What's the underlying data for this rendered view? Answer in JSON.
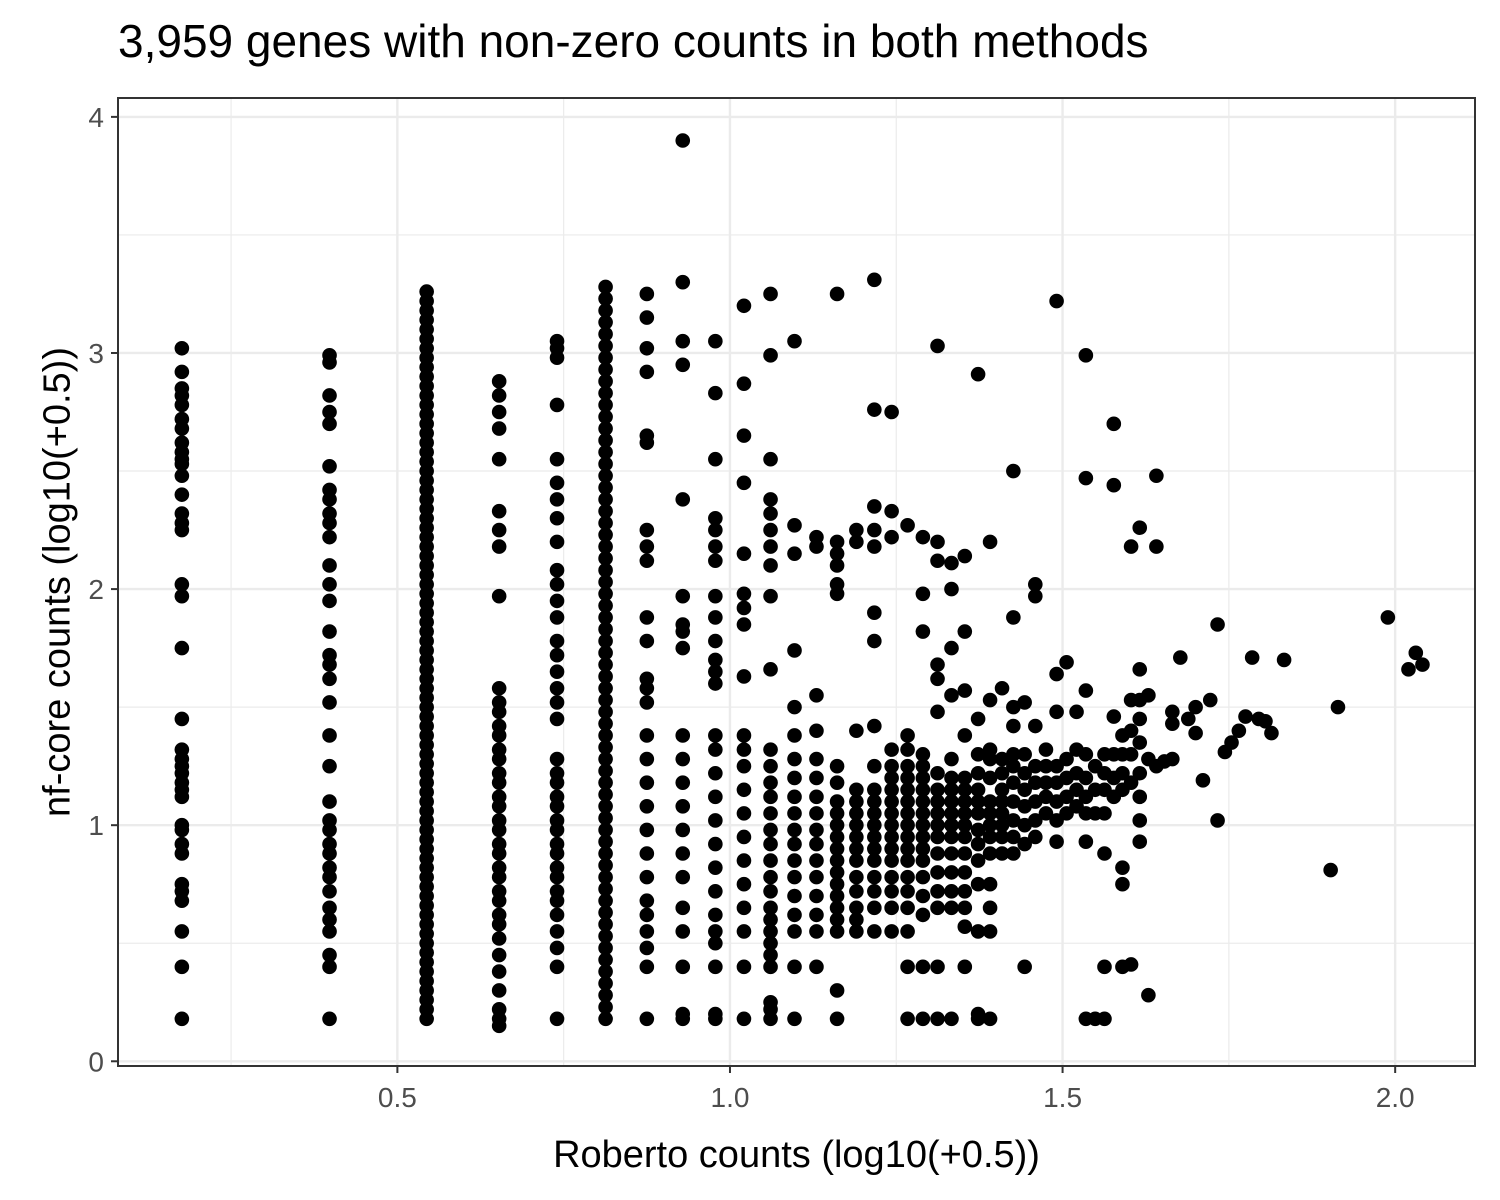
{
  "chart_data": {
    "type": "scatter",
    "title": "3,959 genes with non-zero counts in both methods",
    "xlabel": "Roberto counts (log10(+0.5))",
    "ylabel": "nf-core counts (log10(+0.5))",
    "xlim": [
      0.08,
      2.12
    ],
    "ylim": [
      -0.02,
      4.08
    ],
    "x_ticks": [
      0.5,
      1.0,
      1.5,
      2.0
    ],
    "x_tick_labels": [
      "0.5",
      "1.0",
      "1.5",
      "2.0"
    ],
    "y_ticks": [
      0,
      1,
      2,
      3,
      4
    ],
    "y_tick_labels": [
      "0",
      "1",
      "2",
      "3",
      "4"
    ],
    "grid": true,
    "legend": "none",
    "point_color": "#000000",
    "columns": [
      {
        "x": 0.176,
        "y": [
          0.18,
          0.4,
          0.55,
          0.68,
          0.72,
          0.75,
          0.88,
          0.92,
          0.98,
          1.0,
          1.12,
          1.15,
          1.18,
          1.22,
          1.25,
          1.28,
          1.32,
          1.45,
          1.75,
          1.97,
          2.02,
          2.25,
          2.28,
          2.32,
          2.4,
          2.48,
          2.53,
          2.55,
          2.58,
          2.62,
          2.68,
          2.72,
          2.78,
          2.82,
          2.85,
          2.92,
          3.02
        ]
      },
      {
        "x": 0.398,
        "y": [
          0.18,
          0.4,
          0.45,
          0.55,
          0.6,
          0.65,
          0.72,
          0.78,
          0.82,
          0.88,
          0.92,
          0.98,
          1.02,
          1.1,
          1.25,
          1.38,
          1.52,
          1.62,
          1.68,
          1.72,
          1.82,
          1.95,
          2.02,
          2.1,
          2.22,
          2.28,
          2.32,
          2.38,
          2.42,
          2.52,
          2.7,
          2.75,
          2.82,
          2.96,
          2.99
        ]
      },
      {
        "x": 0.544,
        "y_range": [
          0.18,
          3.28
        ],
        "step": 0.04
      },
      {
        "x": 0.653,
        "y": [
          0.15,
          0.18,
          0.22,
          0.3,
          0.38,
          0.45,
          0.52,
          0.58,
          0.62,
          0.68,
          0.72,
          0.78,
          0.82,
          0.88,
          0.92,
          0.98,
          1.02,
          1.08,
          1.12,
          1.18,
          1.22,
          1.28,
          1.32,
          1.38,
          1.42,
          1.48,
          1.52,
          1.58,
          1.97,
          2.18,
          2.25,
          2.33,
          2.55,
          2.68,
          2.75,
          2.82,
          2.88
        ]
      },
      {
        "x": 0.74,
        "y": [
          0.18,
          0.4,
          0.48,
          0.55,
          0.62,
          0.68,
          0.72,
          0.78,
          0.82,
          0.88,
          0.92,
          0.98,
          1.02,
          1.08,
          1.12,
          1.18,
          1.22,
          1.28,
          1.45,
          1.52,
          1.58,
          1.65,
          1.72,
          1.78,
          1.88,
          1.95,
          2.02,
          2.08,
          2.2,
          2.3,
          2.38,
          2.45,
          2.55,
          2.78,
          2.98,
          3.02,
          3.05
        ]
      },
      {
        "x": 0.813,
        "y_range": [
          0.18,
          3.32
        ],
        "step": 0.05
      },
      {
        "x": 0.875,
        "y": [
          0.18,
          0.4,
          0.48,
          0.55,
          0.62,
          0.68,
          0.78,
          0.88,
          0.98,
          1.08,
          1.18,
          1.28,
          1.38,
          1.52,
          1.58,
          1.62,
          1.78,
          1.88,
          2.12,
          2.18,
          2.25,
          2.62,
          2.65,
          2.92,
          3.02,
          3.15,
          3.25
        ]
      },
      {
        "x": 0.929,
        "y": [
          0.18,
          0.2,
          0.4,
          0.55,
          0.65,
          0.78,
          0.88,
          0.98,
          1.08,
          1.18,
          1.28,
          1.38,
          1.75,
          1.82,
          1.85,
          1.97,
          2.38,
          2.95,
          3.05,
          3.3,
          3.9
        ]
      },
      {
        "x": 0.978,
        "y": [
          0.18,
          0.2,
          0.4,
          0.5,
          0.55,
          0.62,
          0.72,
          0.82,
          0.92,
          1.02,
          1.12,
          1.22,
          1.32,
          1.38,
          1.6,
          1.65,
          1.7,
          1.78,
          1.88,
          1.97,
          2.12,
          2.18,
          2.25,
          2.3,
          2.55,
          2.83,
          3.05
        ]
      },
      {
        "x": 1.021,
        "y": [
          0.18,
          0.4,
          0.55,
          0.65,
          0.75,
          0.85,
          0.95,
          1.05,
          1.15,
          1.25,
          1.32,
          1.38,
          1.63,
          1.85,
          1.92,
          1.98,
          2.15,
          2.45,
          2.65,
          2.87,
          3.2
        ]
      },
      {
        "x": 1.061,
        "y": [
          0.18,
          0.22,
          0.25,
          0.4,
          0.45,
          0.5,
          0.55,
          0.6,
          0.65,
          0.72,
          0.78,
          0.85,
          0.92,
          0.98,
          1.05,
          1.12,
          1.18,
          1.25,
          1.32,
          1.66,
          1.97,
          2.1,
          2.18,
          2.25,
          2.32,
          2.38,
          2.55,
          2.99,
          3.25
        ]
      },
      {
        "x": 1.097,
        "y": [
          0.18,
          0.4,
          0.55,
          0.62,
          0.7,
          0.78,
          0.85,
          0.92,
          0.98,
          1.05,
          1.12,
          1.2,
          1.28,
          1.38,
          1.5,
          1.74,
          2.15,
          2.27,
          3.05
        ]
      },
      {
        "x": 1.13,
        "y": [
          0.4,
          0.55,
          0.62,
          0.7,
          0.78,
          0.85,
          0.92,
          0.98,
          1.05,
          1.12,
          1.2,
          1.28,
          1.4,
          1.55,
          2.18,
          2.22
        ]
      },
      {
        "x": 1.161,
        "y": [
          0.18,
          0.3,
          0.55,
          0.6,
          0.65,
          0.7,
          0.75,
          0.8,
          0.85,
          0.9,
          0.95,
          1.0,
          1.05,
          1.1,
          1.18,
          1.25,
          1.98,
          2.02,
          2.1,
          2.15,
          2.2,
          3.25
        ]
      },
      {
        "x": 1.19,
        "y": [
          0.55,
          0.6,
          0.65,
          0.72,
          0.78,
          0.85,
          0.9,
          0.95,
          1.0,
          1.05,
          1.1,
          1.15,
          1.4,
          2.2,
          2.25
        ]
      },
      {
        "x": 1.217,
        "y": [
          0.55,
          0.65,
          0.72,
          0.78,
          0.85,
          0.9,
          0.95,
          1.0,
          1.05,
          1.1,
          1.15,
          1.25,
          1.42,
          1.78,
          1.9,
          2.18,
          2.25,
          2.35,
          2.76,
          3.31
        ]
      },
      {
        "x": 1.243,
        "y": [
          0.55,
          0.65,
          0.72,
          0.78,
          0.85,
          0.9,
          0.95,
          1.0,
          1.05,
          1.1,
          1.15,
          1.2,
          1.25,
          1.32,
          2.22,
          2.33,
          2.75
        ]
      },
      {
        "x": 1.267,
        "y": [
          0.18,
          0.4,
          0.55,
          0.65,
          0.72,
          0.78,
          0.85,
          0.9,
          0.95,
          1.0,
          1.05,
          1.1,
          1.15,
          1.2,
          1.25,
          1.32,
          1.38,
          2.27
        ]
      },
      {
        "x": 1.29,
        "y": [
          0.18,
          0.4,
          0.62,
          0.7,
          0.78,
          0.85,
          0.9,
          0.95,
          1.0,
          1.05,
          1.1,
          1.15,
          1.2,
          1.25,
          1.3,
          1.82,
          1.98,
          2.22
        ]
      },
      {
        "x": 1.312,
        "y": [
          0.18,
          0.4,
          0.65,
          0.72,
          0.8,
          0.88,
          0.95,
          1.0,
          1.05,
          1.1,
          1.15,
          1.22,
          1.48,
          1.62,
          1.68,
          2.12,
          2.2,
          3.03
        ]
      },
      {
        "x": 1.333,
        "y": [
          0.18,
          0.65,
          0.72,
          0.8,
          0.88,
          0.95,
          1.0,
          1.05,
          1.1,
          1.15,
          1.2,
          1.28,
          1.55,
          1.75,
          2.0,
          2.11
        ]
      },
      {
        "x": 1.353,
        "y": [
          0.4,
          0.57,
          0.65,
          0.72,
          0.8,
          0.88,
          0.95,
          1.0,
          1.05,
          1.1,
          1.15,
          1.2,
          1.38,
          1.57,
          1.82,
          2.14
        ]
      },
      {
        "x": 1.373,
        "y": [
          0.18,
          0.2,
          0.55,
          0.75,
          0.85,
          0.92,
          0.98,
          1.05,
          1.1,
          1.15,
          1.22,
          1.3,
          1.45,
          2.91
        ]
      },
      {
        "x": 1.391,
        "y": [
          0.18,
          0.55,
          0.65,
          0.75,
          0.88,
          0.95,
          1.0,
          1.05,
          1.1,
          1.2,
          1.28,
          1.32,
          1.53,
          2.2
        ]
      },
      {
        "x": 1.409,
        "y": [
          0.88,
          0.95,
          1.0,
          1.05,
          1.1,
          1.15,
          1.22,
          1.28,
          1.58
        ]
      },
      {
        "x": 1.426,
        "y": [
          0.88,
          0.95,
          1.02,
          1.1,
          1.18,
          1.25,
          1.3,
          1.42,
          1.5,
          1.88,
          2.5
        ]
      },
      {
        "x": 1.443,
        "y": [
          0.4,
          0.92,
          1.0,
          1.08,
          1.15,
          1.22,
          1.3,
          1.52
        ]
      },
      {
        "x": 1.459,
        "y": [
          0.95,
          1.02,
          1.1,
          1.18,
          1.25,
          1.42,
          1.97,
          2.02
        ]
      },
      {
        "x": 1.475,
        "y": [
          1.05,
          1.12,
          1.18,
          1.25,
          1.32
        ]
      },
      {
        "x": 1.491,
        "y": [
          0.93,
          1.02,
          1.1,
          1.18,
          1.25,
          1.48,
          1.64,
          3.22
        ]
      },
      {
        "x": 1.506,
        "y": [
          1.05,
          1.12,
          1.2,
          1.28,
          1.69
        ]
      },
      {
        "x": 1.521,
        "y": [
          1.08,
          1.15,
          1.22,
          1.32,
          1.48
        ]
      },
      {
        "x": 1.535,
        "y": [
          0.18,
          0.93,
          1.05,
          1.12,
          1.2,
          1.3,
          1.57,
          2.47,
          2.99
        ]
      },
      {
        "x": 1.549,
        "y": [
          0.18,
          1.05,
          1.15,
          1.25
        ]
      },
      {
        "x": 1.563,
        "y": [
          0.18,
          0.4,
          0.88,
          1.05,
          1.15,
          1.22,
          1.3
        ]
      },
      {
        "x": 1.577,
        "y": [
          1.12,
          1.2,
          1.3,
          1.46,
          2.44,
          2.7
        ]
      },
      {
        "x": 1.59,
        "y": [
          0.4,
          0.75,
          0.82,
          1.15,
          1.22,
          1.3,
          1.38
        ]
      },
      {
        "x": 1.603,
        "y": [
          0.41,
          1.18,
          1.3,
          1.4,
          1.53,
          2.18
        ]
      },
      {
        "x": 1.616,
        "y": [
          0.93,
          1.02,
          1.12,
          1.22,
          1.35,
          1.45,
          1.53,
          1.66,
          2.26
        ]
      },
      {
        "x": 1.629,
        "y": [
          0.28,
          1.28,
          1.55
        ]
      },
      {
        "x": 1.641,
        "y": [
          1.25,
          2.18,
          2.48
        ]
      },
      {
        "x": 1.653,
        "y": [
          1.27
        ]
      },
      {
        "x": 1.665,
        "y": [
          1.28,
          1.43,
          1.48
        ]
      },
      {
        "x": 1.677,
        "y": [
          1.71
        ]
      },
      {
        "x": 1.689,
        "y": [
          1.45
        ]
      },
      {
        "x": 1.7,
        "y": [
          1.39,
          1.5
        ]
      },
      {
        "x": 1.711,
        "y": [
          1.19
        ]
      },
      {
        "x": 1.722,
        "y": [
          1.53
        ]
      },
      {
        "x": 1.733,
        "y": [
          1.02,
          1.85
        ]
      },
      {
        "x": 1.744,
        "y": [
          1.31
        ]
      },
      {
        "x": 1.754,
        "y": [
          1.35
        ]
      },
      {
        "x": 1.765,
        "y": [
          1.4
        ]
      },
      {
        "x": 1.775,
        "y": [
          1.46
        ]
      },
      {
        "x": 1.785,
        "y": [
          1.71
        ]
      },
      {
        "x": 1.795,
        "y": [
          1.45
        ]
      },
      {
        "x": 1.805,
        "y": [
          1.44
        ]
      },
      {
        "x": 1.814,
        "y": [
          1.39
        ]
      },
      {
        "x": 1.833,
        "y": [
          1.7
        ]
      },
      {
        "x": 1.903,
        "y": [
          0.81
        ]
      },
      {
        "x": 1.914,
        "y": [
          1.5
        ]
      },
      {
        "x": 1.989,
        "y": [
          1.88
        ]
      },
      {
        "x": 2.02,
        "y": [
          1.66
        ]
      },
      {
        "x": 2.031,
        "y": [
          1.73
        ]
      },
      {
        "x": 2.041,
        "y": [
          1.68
        ]
      }
    ]
  }
}
